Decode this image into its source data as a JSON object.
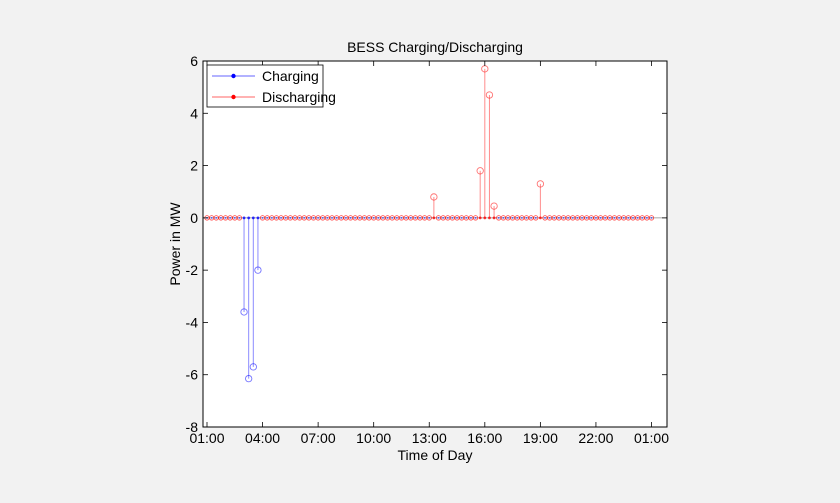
{
  "chart_data": {
    "type": "stem",
    "title": "BESS Charging/Discharging",
    "xlabel": "Time of Day",
    "ylabel": "Power in MW",
    "xlim": [
      0,
      24
    ],
    "ylim": [
      -8,
      6
    ],
    "xticks": [
      "01:00",
      "04:00",
      "07:00",
      "10:00",
      "13:00",
      "16:00",
      "19:00",
      "22:00",
      "01:00"
    ],
    "yticks": [
      -8,
      -6,
      -4,
      -2,
      0,
      2,
      4,
      6
    ],
    "grid": false,
    "legend": {
      "position": "top-left",
      "entries": [
        "Charging",
        "Discharging"
      ]
    },
    "baseline_step_hours": 0.25,
    "series": [
      {
        "name": "Charging",
        "color": "#0000ff",
        "points": [
          {
            "x": 2.0,
            "y": -3.6
          },
          {
            "x": 2.25,
            "y": -6.15
          },
          {
            "x": 2.5,
            "y": -5.7
          },
          {
            "x": 2.75,
            "y": -2.0
          }
        ]
      },
      {
        "name": "Discharging",
        "color": "#ff0000",
        "points": [
          {
            "x": 12.25,
            "y": 0.8
          },
          {
            "x": 14.75,
            "y": 1.8
          },
          {
            "x": 15.0,
            "y": 5.7
          },
          {
            "x": 15.25,
            "y": 4.7
          },
          {
            "x": 15.5,
            "y": 0.45
          },
          {
            "x": 18.0,
            "y": 1.3
          }
        ]
      }
    ]
  }
}
